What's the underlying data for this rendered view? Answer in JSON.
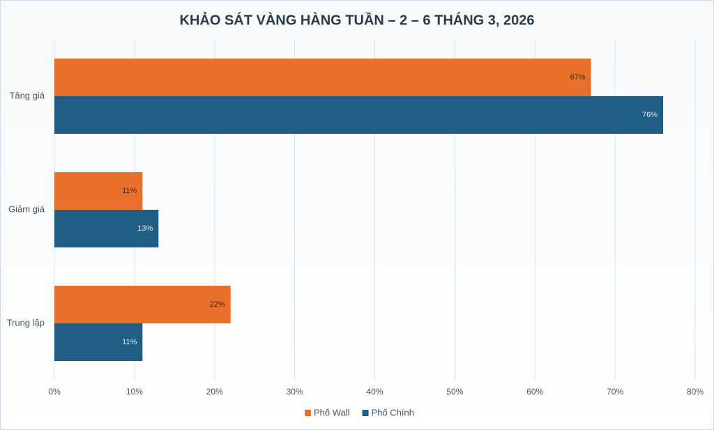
{
  "chart_data": {
    "type": "hbar",
    "title": "KHẢO SÁT VÀNG HÀNG TUẦN – 2 – 6 THÁNG 3, 2026",
    "categories": [
      "Tăng giá",
      "Giảm giá",
      "Trung lập"
    ],
    "series": [
      {
        "name": "Phố Wall",
        "color": "#e8702a",
        "values": [
          67,
          11,
          22
        ],
        "value_labels": [
          "67%",
          "11%",
          "22%"
        ]
      },
      {
        "name": "Phố Chính",
        "color": "#1f5f85",
        "values": [
          76,
          13,
          11
        ],
        "value_labels": [
          "76%",
          "13%",
          "11%"
        ]
      }
    ],
    "xlim": [
      0,
      80
    ],
    "xticks": [
      {
        "value": 0,
        "label": "0%"
      },
      {
        "value": 10,
        "label": "10%"
      },
      {
        "value": 20,
        "label": "20%"
      },
      {
        "value": 30,
        "label": "30%"
      },
      {
        "value": 40,
        "label": "40%"
      },
      {
        "value": 50,
        "label": "50%"
      },
      {
        "value": 60,
        "label": "60%"
      },
      {
        "value": 70,
        "label": "70%"
      },
      {
        "value": 80,
        "label": "80%"
      }
    ],
    "grid": true,
    "legend": "bottom"
  }
}
